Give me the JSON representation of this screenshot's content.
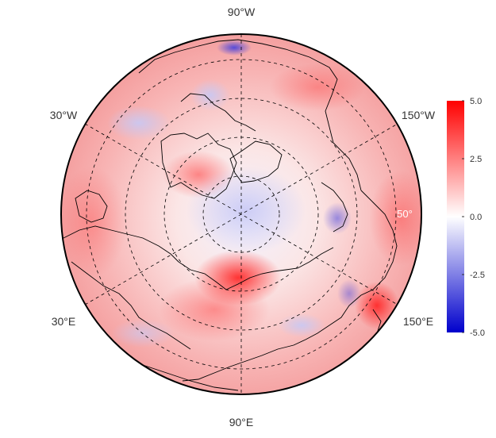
{
  "map": {
    "lon_labels": {
      "top": "90°W",
      "bottom": "90°E",
      "upper_left": "30°W",
      "upper_right": "150°W",
      "lower_left": "30°E",
      "lower_right": "150°E"
    },
    "lat_label": "50°"
  },
  "colorbar": {
    "ticks": [
      "5.0",
      "2.5",
      "0.0",
      "-2.5",
      "-5.0"
    ],
    "min": -5.0,
    "max": 5.0,
    "colors": {
      "high": "#ff0000",
      "mid": "#ffffff",
      "low": "#0000cc"
    }
  }
}
